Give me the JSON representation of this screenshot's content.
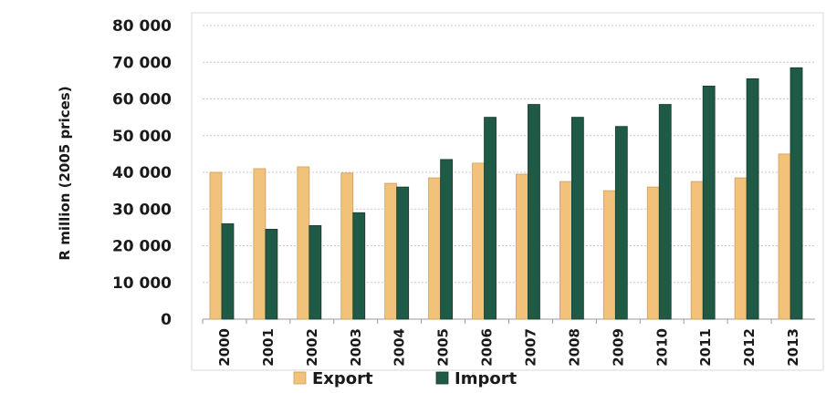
{
  "chart_data": {
    "type": "bar",
    "ylabel": "R million (2005 prices)",
    "xlabel": "",
    "ylim": [
      0,
      80000
    ],
    "yticks": [
      "0",
      "10 000",
      "20 000",
      "30 000",
      "40 000",
      "50 000",
      "60 000",
      "70 000",
      "80 000"
    ],
    "ytick_values": [
      0,
      10000,
      20000,
      30000,
      40000,
      50000,
      60000,
      70000,
      80000
    ],
    "grid": true,
    "legend_position": "bottom",
    "categories": [
      "2000",
      "2001",
      "2002",
      "2003",
      "2004",
      "2005",
      "2006",
      "2007",
      "2008",
      "2009",
      "2010",
      "2011",
      "2012",
      "2013"
    ],
    "series": [
      {
        "name": "Export",
        "color": "#f2c27a",
        "values": [
          40000,
          41000,
          41500,
          39800,
          37000,
          38500,
          42500,
          39500,
          37500,
          35000,
          36000,
          37500,
          38500,
          45000
        ]
      },
      {
        "name": "Import",
        "color": "#1e5a45",
        "values": [
          26000,
          24500,
          25500,
          29000,
          36000,
          43500,
          55000,
          58500,
          55000,
          52500,
          58500,
          63500,
          65500,
          68500
        ]
      }
    ]
  }
}
